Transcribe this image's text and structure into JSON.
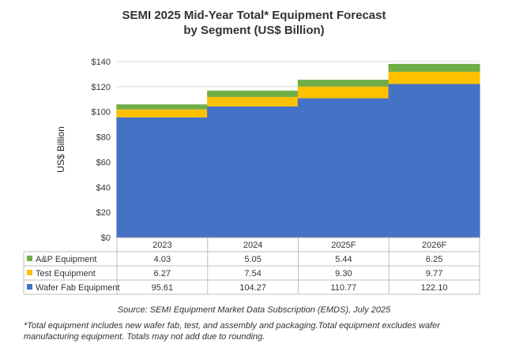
{
  "title_line1": "SEMI 2025 Mid-Year Total* Equipment Forecast",
  "title_line2": "by Segment (US$ Billion)",
  "source": "Source: SEMI Equipment Market Data Subscription (EMDS), July 2025",
  "note_line1": "*Total equipment includes new wafer fab, test, and assembly and packaging.Total equipment excludes wafer",
  "note_line2": "manufacturing equipment. Totals may not add due to rounding.",
  "chart_data": {
    "type": "bar",
    "stacked": true,
    "title": "SEMI 2025 Mid-Year Total* Equipment Forecast by Segment (US$ Billion)",
    "ylabel": "US$ Billion",
    "ylim": [
      0,
      140
    ],
    "yticks": [
      "$0",
      "$20",
      "$40",
      "$60",
      "$80",
      "$100",
      "$120",
      "$140"
    ],
    "ytick_values": [
      0,
      20,
      40,
      60,
      80,
      100,
      120,
      140
    ],
    "grid": true,
    "legend": "data-table",
    "categories": [
      "2023",
      "2024",
      "2025F",
      "2026F"
    ],
    "series": [
      {
        "name": "Wafer Fab Equipment",
        "color": "#4472C4",
        "values": [
          95.61,
          104.27,
          110.77,
          122.1
        ],
        "labels": [
          "95.61",
          "104.27",
          "110.77",
          "122.10"
        ]
      },
      {
        "name": "Test Equipment",
        "color": "#FFC000",
        "values": [
          6.27,
          7.54,
          9.3,
          9.77
        ],
        "labels": [
          "6.27",
          "7.54",
          "9.30",
          "9.77"
        ]
      },
      {
        "name": "A&P Equipment",
        "color": "#70AD47",
        "values": [
          4.03,
          5.05,
          5.44,
          6.25
        ],
        "labels": [
          "4.03",
          "5.05",
          "5.44",
          "6.25"
        ]
      }
    ]
  }
}
